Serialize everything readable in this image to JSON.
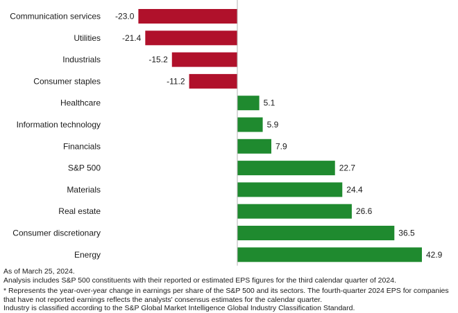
{
  "chart_data": {
    "type": "bar",
    "orientation": "horizontal",
    "categories": [
      "Communication services",
      "Utilities",
      "Industrials",
      "Consumer staples",
      "Healthcare",
      "Information technology",
      "Financials",
      "S&P 500",
      "Materials",
      "Real estate",
      "Consumer discretionary",
      "Energy"
    ],
    "values": [
      -23.0,
      -21.4,
      -15.2,
      -11.2,
      5.1,
      5.9,
      7.9,
      22.7,
      24.4,
      26.6,
      36.5,
      42.9
    ],
    "value_labels": [
      "-23.0",
      "-21.4",
      "-15.2",
      "-11.2",
      "5.1",
      "5.9",
      "7.9",
      "22.7",
      "24.4",
      "26.6",
      "36.5",
      "42.9"
    ],
    "xlim": [
      -23.0,
      42.9
    ],
    "grid": false,
    "legend": "none",
    "colors": {
      "negative": "#b0112b",
      "positive": "#1f8a2f",
      "zero_line": "#b3b3b3"
    }
  },
  "footnotes": {
    "as_of": "As of March 25, 2024.",
    "analysis": "Analysis includes S&P 500 constituents with their reported or estimated EPS figures for the third calendar quarter of 2024.",
    "represents": "* Represents the year-over-year change in earnings per share of the S&P 500 and its sectors. The fourth-quarter 2024 EPS for companies that have not reported earnings reflects the analysts' consensus estimates for the calendar quarter.",
    "classification": "Industry is classified according to the S&P Global Market Intelligence Global Industry Classification Standard."
  }
}
